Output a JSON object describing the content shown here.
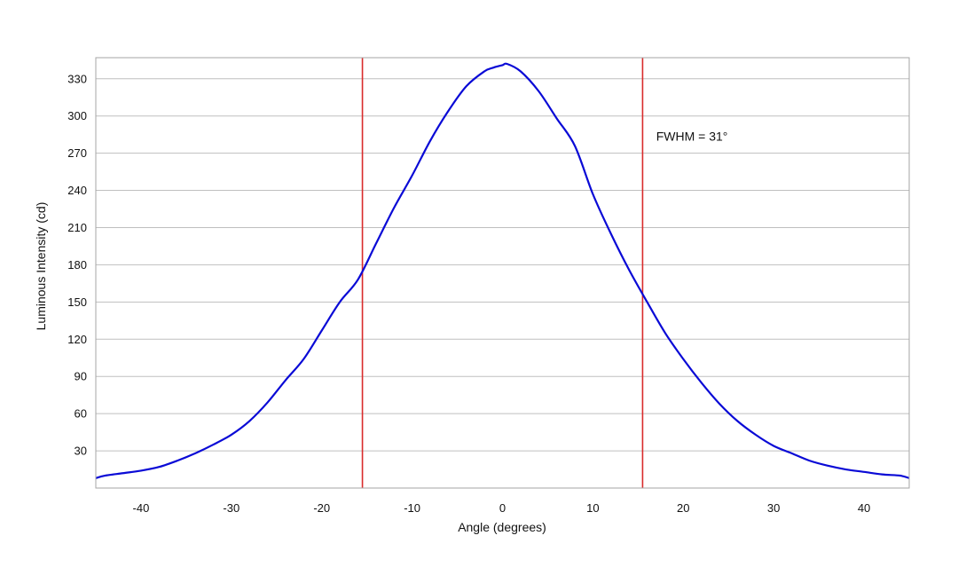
{
  "chart_data": {
    "type": "line",
    "xlabel": "Angle (degrees)",
    "ylabel": "Luminous Intensity (cd)",
    "xlim": [
      -45,
      45
    ],
    "ylim": [
      0,
      347
    ],
    "x_ticks": [
      -40,
      -30,
      -20,
      -10,
      0,
      10,
      20,
      30,
      40
    ],
    "y_ticks": [
      30,
      60,
      90,
      120,
      150,
      180,
      210,
      240,
      270,
      300,
      330
    ],
    "grid": {
      "horizontal": true,
      "vertical": false
    },
    "series": [
      {
        "color": "#0a0ad6",
        "x": [
          -45,
          -44,
          -42,
          -40,
          -38,
          -36,
          -34,
          -32,
          -30,
          -28,
          -26,
          -24,
          -22,
          -20,
          -18,
          -16,
          -14,
          -12,
          -10,
          -8,
          -6,
          -4,
          -2,
          -1,
          0,
          0.5,
          2,
          4,
          6,
          8,
          10,
          12,
          14,
          16,
          18,
          20,
          22,
          24,
          26,
          28,
          30,
          32,
          34,
          36,
          38,
          40,
          42,
          44,
          45
        ],
        "y": [
          8,
          10,
          12,
          14,
          17,
          22,
          28,
          35,
          43,
          54,
          69,
          87,
          104,
          127,
          150,
          168,
          197,
          226,
          252,
          280,
          304,
          324,
          336,
          339,
          341,
          342,
          336,
          320,
          298,
          276,
          237,
          205,
          176,
          150,
          125,
          104,
          85,
          68,
          54,
          43,
          34,
          28,
          22,
          18,
          15,
          13,
          11,
          10,
          8
        ]
      }
    ],
    "vertical_markers": [
      {
        "x": -15.5,
        "color": "#d92b2b"
      },
      {
        "x": 15.5,
        "color": "#d92b2b"
      }
    ],
    "annotations": [
      {
        "text": "FWHM = 31°",
        "x": 17,
        "y": 280
      }
    ]
  }
}
